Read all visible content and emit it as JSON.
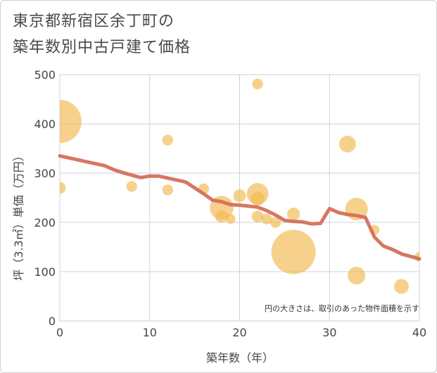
{
  "title_lines": [
    "東京都新宿区余丁町の",
    "築年数別中古戸建て価格"
  ],
  "chart_data": {
    "type": "scatter",
    "title": "東京都新宿区余丁町の築年数別中古戸建て価格",
    "xlabel": "築年数（年）",
    "ylabel": "坪（3.3㎡）単価（万円）",
    "xlim": [
      0,
      40
    ],
    "ylim": [
      0,
      500
    ],
    "xticks": [
      0,
      10,
      20,
      30,
      40
    ],
    "yticks": [
      0,
      100,
      200,
      300,
      400,
      500
    ],
    "grid": true,
    "note": "円の大きさは、取引のあった物件面積を示す",
    "colors": {
      "bubble": "#f2b84e",
      "trend": "#d4705a",
      "grid": "#c8d3dc"
    },
    "points": [
      {
        "x": 0,
        "y": 405,
        "size": 4.4
      },
      {
        "x": 0,
        "y": 270,
        "size": 1.2
      },
      {
        "x": 8,
        "y": 273,
        "size": 1.1
      },
      {
        "x": 12,
        "y": 367,
        "size": 1.1
      },
      {
        "x": 12,
        "y": 266,
        "size": 1.1
      },
      {
        "x": 16,
        "y": 268,
        "size": 1.1
      },
      {
        "x": 18,
        "y": 230,
        "size": 2.4
      },
      {
        "x": 18,
        "y": 212,
        "size": 1.3
      },
      {
        "x": 19,
        "y": 207,
        "size": 1.0
      },
      {
        "x": 20,
        "y": 254,
        "size": 1.3
      },
      {
        "x": 22,
        "y": 481,
        "size": 1.1
      },
      {
        "x": 22,
        "y": 258,
        "size": 2.2
      },
      {
        "x": 22,
        "y": 248,
        "size": 1.4
      },
      {
        "x": 22,
        "y": 212,
        "size": 1.2
      },
      {
        "x": 23,
        "y": 207,
        "size": 1.1
      },
      {
        "x": 24,
        "y": 200,
        "size": 1.1
      },
      {
        "x": 26,
        "y": 140,
        "size": 4.5
      },
      {
        "x": 26,
        "y": 217,
        "size": 1.3
      },
      {
        "x": 32,
        "y": 359,
        "size": 1.7
      },
      {
        "x": 33,
        "y": 227,
        "size": 2.3
      },
      {
        "x": 33,
        "y": 92,
        "size": 1.8
      },
      {
        "x": 35,
        "y": 185,
        "size": 1.0
      },
      {
        "x": 38,
        "y": 70,
        "size": 1.5
      },
      {
        "x": 40,
        "y": 130,
        "size": 1.0
      }
    ],
    "trend": {
      "x": [
        0,
        1,
        2,
        3,
        4,
        5,
        6,
        7,
        8,
        9,
        10,
        11,
        12,
        13,
        14,
        15,
        16,
        17,
        18,
        19,
        20,
        21,
        22,
        23,
        24,
        25,
        26,
        27,
        28,
        29,
        30,
        31,
        32,
        33,
        34,
        35,
        36,
        37,
        38,
        39,
        40
      ],
      "y": [
        335,
        331,
        327,
        323,
        319,
        315,
        307,
        301,
        296,
        291,
        294,
        294,
        290,
        286,
        282,
        270,
        258,
        245,
        242,
        236,
        235,
        233,
        231,
        224,
        215,
        204,
        202,
        201,
        197,
        198,
        228,
        220,
        216,
        214,
        210,
        170,
        152,
        145,
        136,
        131,
        126
      ]
    }
  }
}
